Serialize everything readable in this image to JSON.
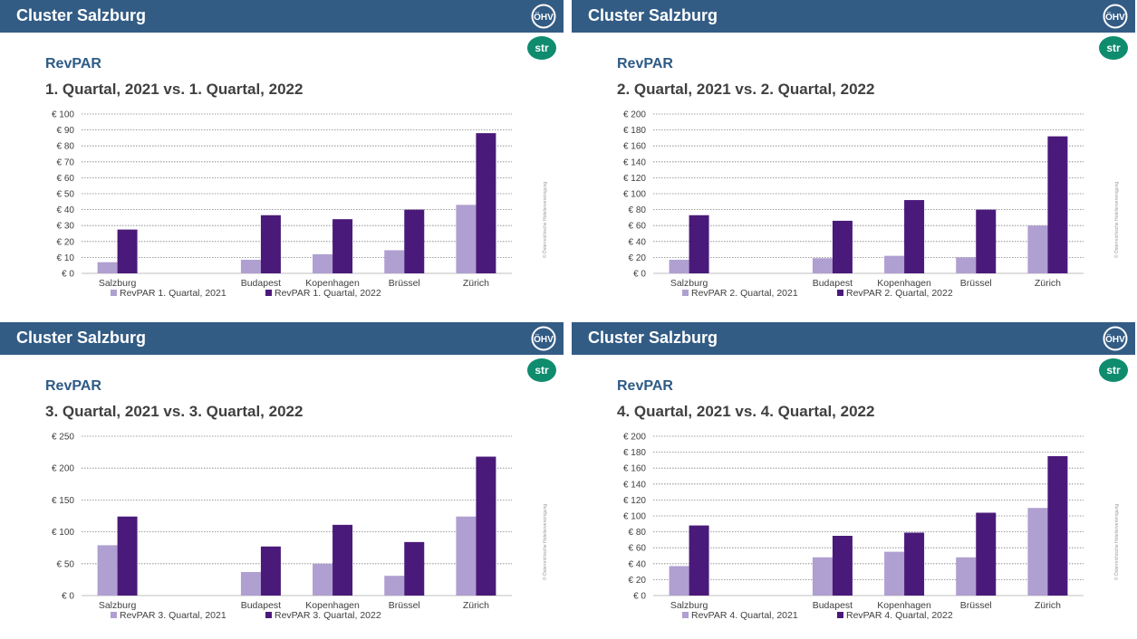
{
  "colors": {
    "header_bg": "#335c85",
    "series_2021": "#b09fd1",
    "series_2022": "#4a1a7a",
    "metric_title": "#2e5b86",
    "str_logo": "#0f8c6e"
  },
  "icons": {
    "ohv_logo": "ohv-logo-icon",
    "str_logo": "str-logo-icon"
  },
  "panels": [
    {
      "header": "Cluster Salzburg",
      "ohv_text": "ÖHV",
      "str_text": "str",
      "metric": "RevPAR",
      "subtitle": "1. Quartal, 2021 vs. 1. Quartal, 2022",
      "copyright": "© Österreichische Hoteliervereinigung",
      "chart_data": {
        "type": "bar",
        "categories": [
          "Salzburg",
          "",
          "Budapest",
          "Kopenhagen",
          "Brüssel",
          "Zürich"
        ],
        "series": [
          {
            "name": "RevPAR 1. Quartal, 2021",
            "values": [
              7,
              null,
              8.5,
              12,
              14.5,
              43
            ]
          },
          {
            "name": "RevPAR 1. Quartal, 2022",
            "values": [
              27.5,
              null,
              36.5,
              34,
              40,
              88
            ]
          }
        ],
        "ylim": [
          0,
          100
        ],
        "yticks": [
          0,
          10,
          20,
          30,
          40,
          50,
          60,
          70,
          80,
          90,
          100
        ],
        "ytick_labels": [
          "€ 0",
          "€ 10",
          "€ 20",
          "€ 30",
          "€ 40",
          "€ 50",
          "€ 60",
          "€ 70",
          "€ 80",
          "€ 90",
          "€ 100"
        ],
        "grid": true,
        "legend": "bottom"
      }
    },
    {
      "header": "Cluster Salzburg",
      "ohv_text": "ÖHV",
      "str_text": "str",
      "metric": "RevPAR",
      "subtitle": "2. Quartal, 2021 vs. 2. Quartal, 2022",
      "copyright": "© Österreichische Hoteliervereinigung",
      "chart_data": {
        "type": "bar",
        "categories": [
          "Salzburg",
          "",
          "Budapest",
          "Kopenhagen",
          "Brüssel",
          "Zürich"
        ],
        "series": [
          {
            "name": "RevPAR 2. Quartal, 2021",
            "values": [
              17,
              null,
              19,
              22,
              20,
              60
            ]
          },
          {
            "name": "RevPAR 2. Quartal, 2022",
            "values": [
              73,
              null,
              66,
              92,
              80,
              172
            ]
          }
        ],
        "ylim": [
          0,
          200
        ],
        "yticks": [
          0,
          20,
          40,
          60,
          80,
          100,
          120,
          140,
          160,
          180,
          200
        ],
        "ytick_labels": [
          "€ 0",
          "€ 20",
          "€ 40",
          "€ 60",
          "€ 80",
          "€ 100",
          "€ 120",
          "€ 140",
          "€ 160",
          "€ 180",
          "€ 200"
        ],
        "grid": true,
        "legend": "bottom"
      }
    },
    {
      "header": "Cluster Salzburg",
      "ohv_text": "ÖHV",
      "str_text": "str",
      "metric": "RevPAR",
      "subtitle": "3. Quartal, 2021 vs. 3. Quartal, 2022",
      "copyright": "© Österreichische Hoteliervereinigung",
      "chart_data": {
        "type": "bar",
        "categories": [
          "Salzburg",
          "",
          "Budapest",
          "Kopenhagen",
          "Brüssel",
          "Zürich"
        ],
        "series": [
          {
            "name": "RevPAR 3. Quartal, 2021",
            "values": [
              79,
              null,
              37,
              50,
              31,
              124
            ]
          },
          {
            "name": "RevPAR 3. Quartal, 2022",
            "values": [
              124,
              null,
              77,
              111,
              84,
              218
            ]
          }
        ],
        "ylim": [
          0,
          250
        ],
        "yticks": [
          0,
          50,
          100,
          150,
          200,
          250
        ],
        "ytick_labels": [
          "€ 0",
          "€ 50",
          "€ 100",
          "€ 150",
          "€ 200",
          "€ 250"
        ],
        "grid": true,
        "legend": "bottom"
      }
    },
    {
      "header": "Cluster Salzburg",
      "ohv_text": "ÖHV",
      "str_text": "str",
      "metric": "RevPAR",
      "subtitle": "4. Quartal, 2021 vs. 4. Quartal, 2022",
      "copyright": "© Österreichische Hoteliervereinigung",
      "chart_data": {
        "type": "bar",
        "categories": [
          "Salzburg",
          "",
          "Budapest",
          "Kopenhagen",
          "Brüssel",
          "Zürich"
        ],
        "series": [
          {
            "name": "RevPAR 4. Quartal, 2021",
            "values": [
              37,
              null,
              48,
              55,
              48,
              110
            ]
          },
          {
            "name": "RevPAR 4. Quartal, 2022",
            "values": [
              88,
              null,
              75,
              79,
              104,
              175
            ]
          }
        ],
        "ylim": [
          0,
          200
        ],
        "yticks": [
          0,
          20,
          40,
          60,
          80,
          100,
          120,
          140,
          160,
          180,
          200
        ],
        "ytick_labels": [
          "€ 0",
          "€ 20",
          "€ 40",
          "€ 60",
          "€ 80",
          "€ 100",
          "€ 120",
          "€ 140",
          "€ 160",
          "€ 180",
          "€ 200"
        ],
        "grid": true,
        "legend": "bottom"
      }
    }
  ]
}
